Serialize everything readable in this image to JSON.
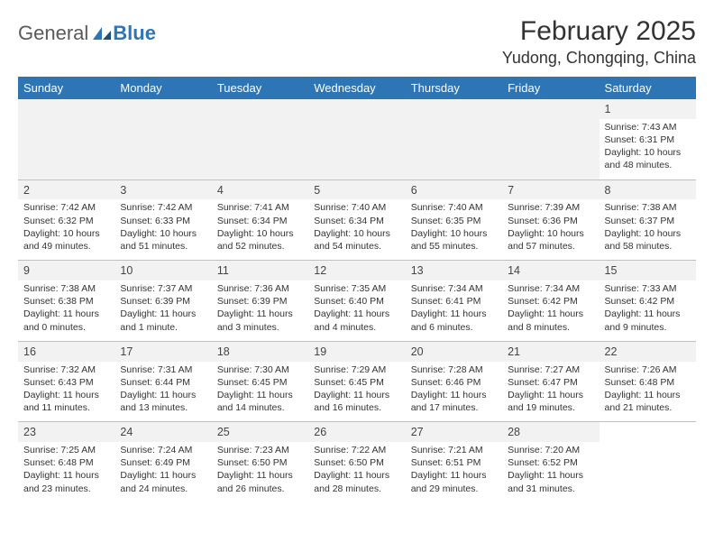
{
  "brand": {
    "part1": "General",
    "part2": "Blue"
  },
  "header": {
    "month_title": "February 2025",
    "location": "Yudong, Chongqing, China"
  },
  "colors": {
    "header_bg": "#2e75b6",
    "header_fg": "#ffffff",
    "daynum_bg": "#f2f2f2",
    "border": "#bfbfbf",
    "brand_blue": "#2e75b6"
  },
  "weekdays": [
    "Sunday",
    "Monday",
    "Tuesday",
    "Wednesday",
    "Thursday",
    "Friday",
    "Saturday"
  ],
  "weeks": [
    [
      null,
      null,
      null,
      null,
      null,
      null,
      {
        "n": "1",
        "sr": "7:43 AM",
        "ss": "6:31 PM",
        "dl": "10 hours and 48 minutes."
      }
    ],
    [
      {
        "n": "2",
        "sr": "7:42 AM",
        "ss": "6:32 PM",
        "dl": "10 hours and 49 minutes."
      },
      {
        "n": "3",
        "sr": "7:42 AM",
        "ss": "6:33 PM",
        "dl": "10 hours and 51 minutes."
      },
      {
        "n": "4",
        "sr": "7:41 AM",
        "ss": "6:34 PM",
        "dl": "10 hours and 52 minutes."
      },
      {
        "n": "5",
        "sr": "7:40 AM",
        "ss": "6:34 PM",
        "dl": "10 hours and 54 minutes."
      },
      {
        "n": "6",
        "sr": "7:40 AM",
        "ss": "6:35 PM",
        "dl": "10 hours and 55 minutes."
      },
      {
        "n": "7",
        "sr": "7:39 AM",
        "ss": "6:36 PM",
        "dl": "10 hours and 57 minutes."
      },
      {
        "n": "8",
        "sr": "7:38 AM",
        "ss": "6:37 PM",
        "dl": "10 hours and 58 minutes."
      }
    ],
    [
      {
        "n": "9",
        "sr": "7:38 AM",
        "ss": "6:38 PM",
        "dl": "11 hours and 0 minutes."
      },
      {
        "n": "10",
        "sr": "7:37 AM",
        "ss": "6:39 PM",
        "dl": "11 hours and 1 minute."
      },
      {
        "n": "11",
        "sr": "7:36 AM",
        "ss": "6:39 PM",
        "dl": "11 hours and 3 minutes."
      },
      {
        "n": "12",
        "sr": "7:35 AM",
        "ss": "6:40 PM",
        "dl": "11 hours and 4 minutes."
      },
      {
        "n": "13",
        "sr": "7:34 AM",
        "ss": "6:41 PM",
        "dl": "11 hours and 6 minutes."
      },
      {
        "n": "14",
        "sr": "7:34 AM",
        "ss": "6:42 PM",
        "dl": "11 hours and 8 minutes."
      },
      {
        "n": "15",
        "sr": "7:33 AM",
        "ss": "6:42 PM",
        "dl": "11 hours and 9 minutes."
      }
    ],
    [
      {
        "n": "16",
        "sr": "7:32 AM",
        "ss": "6:43 PM",
        "dl": "11 hours and 11 minutes."
      },
      {
        "n": "17",
        "sr": "7:31 AM",
        "ss": "6:44 PM",
        "dl": "11 hours and 13 minutes."
      },
      {
        "n": "18",
        "sr": "7:30 AM",
        "ss": "6:45 PM",
        "dl": "11 hours and 14 minutes."
      },
      {
        "n": "19",
        "sr": "7:29 AM",
        "ss": "6:45 PM",
        "dl": "11 hours and 16 minutes."
      },
      {
        "n": "20",
        "sr": "7:28 AM",
        "ss": "6:46 PM",
        "dl": "11 hours and 17 minutes."
      },
      {
        "n": "21",
        "sr": "7:27 AM",
        "ss": "6:47 PM",
        "dl": "11 hours and 19 minutes."
      },
      {
        "n": "22",
        "sr": "7:26 AM",
        "ss": "6:48 PM",
        "dl": "11 hours and 21 minutes."
      }
    ],
    [
      {
        "n": "23",
        "sr": "7:25 AM",
        "ss": "6:48 PM",
        "dl": "11 hours and 23 minutes."
      },
      {
        "n": "24",
        "sr": "7:24 AM",
        "ss": "6:49 PM",
        "dl": "11 hours and 24 minutes."
      },
      {
        "n": "25",
        "sr": "7:23 AM",
        "ss": "6:50 PM",
        "dl": "11 hours and 26 minutes."
      },
      {
        "n": "26",
        "sr": "7:22 AM",
        "ss": "6:50 PM",
        "dl": "11 hours and 28 minutes."
      },
      {
        "n": "27",
        "sr": "7:21 AM",
        "ss": "6:51 PM",
        "dl": "11 hours and 29 minutes."
      },
      {
        "n": "28",
        "sr": "7:20 AM",
        "ss": "6:52 PM",
        "dl": "11 hours and 31 minutes."
      },
      null
    ]
  ],
  "labels": {
    "sunrise": "Sunrise:",
    "sunset": "Sunset:",
    "daylight": "Daylight:"
  }
}
